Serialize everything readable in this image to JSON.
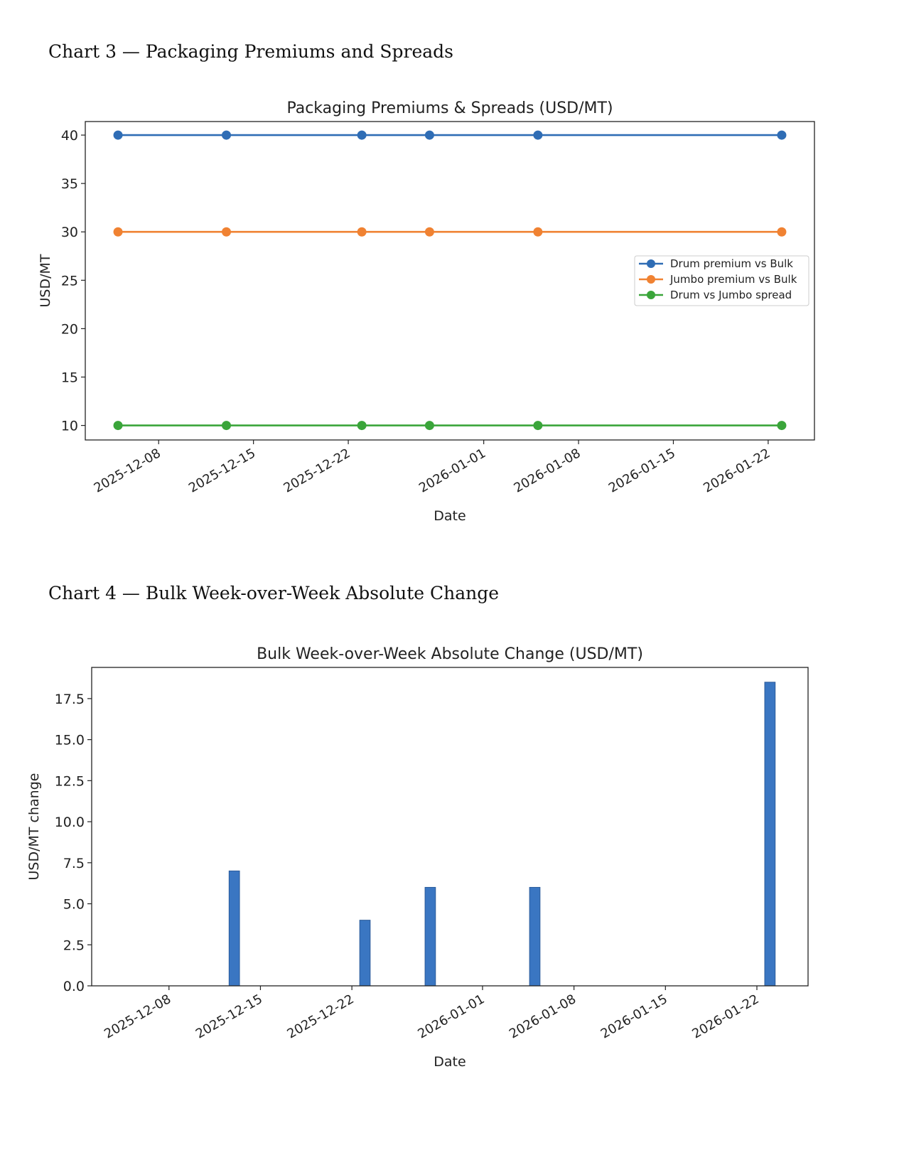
{
  "headings": {
    "chart3": "Chart 3 — Packaging Premiums and Spreads",
    "chart4": "Chart 4 — Bulk Week-over-Week Absolute Change"
  },
  "chart_data": [
    {
      "type": "line",
      "title": "Packaging Premiums & Spreads (USD/MT)",
      "xlabel": "Date",
      "ylabel": "USD/MT",
      "x": [
        "2025-12-05",
        "2025-12-13",
        "2025-12-23",
        "2025-12-28",
        "2026-01-05",
        "2026-01-23"
      ],
      "xticks": [
        "2025-12-08",
        "2025-12-15",
        "2025-12-22",
        "2026-01-01",
        "2026-01-08",
        "2026-01-15",
        "2026-01-22"
      ],
      "yticks": [
        10,
        15,
        20,
        25,
        30,
        35,
        40
      ],
      "ylim": [
        8.5,
        41.4
      ],
      "xlim": [
        "2025-12-02T14:00",
        "2026-01-25T10:00"
      ],
      "legend": "center-right",
      "grid": false,
      "series": [
        {
          "name": "Drum premium vs Bulk",
          "color": "#2f6db5",
          "values": [
            40,
            40,
            40,
            40,
            40,
            40
          ]
        },
        {
          "name": "Jumbo premium vs Bulk",
          "color": "#f08232",
          "values": [
            30,
            30,
            30,
            30,
            30,
            30
          ]
        },
        {
          "name": "Drum vs Jumbo spread",
          "color": "#3aa53a",
          "values": [
            10,
            10,
            10,
            10,
            10,
            10
          ]
        }
      ]
    },
    {
      "type": "bar",
      "title": "Bulk Week-over-Week Absolute Change (USD/MT)",
      "xlabel": "Date",
      "ylabel": "USD/MT change",
      "x": [
        "2025-12-05",
        "2025-12-13",
        "2025-12-23",
        "2025-12-28",
        "2026-01-05",
        "2026-01-23"
      ],
      "values": [
        0,
        7,
        4,
        6,
        6,
        18.5
      ],
      "color": "#3a76c2",
      "xticks": [
        "2025-12-08",
        "2025-12-15",
        "2025-12-22",
        "2026-01-01",
        "2026-01-08",
        "2026-01-15",
        "2026-01-22"
      ],
      "yticks": [
        "0.0",
        "2.5",
        "5.0",
        "7.5",
        "10.0",
        "12.5",
        "15.0",
        "17.5"
      ],
      "ylim": [
        0,
        19.4
      ],
      "xlim": [
        "2025-12-02T02:00",
        "2026-01-25T22:00"
      ],
      "grid": false
    }
  ]
}
